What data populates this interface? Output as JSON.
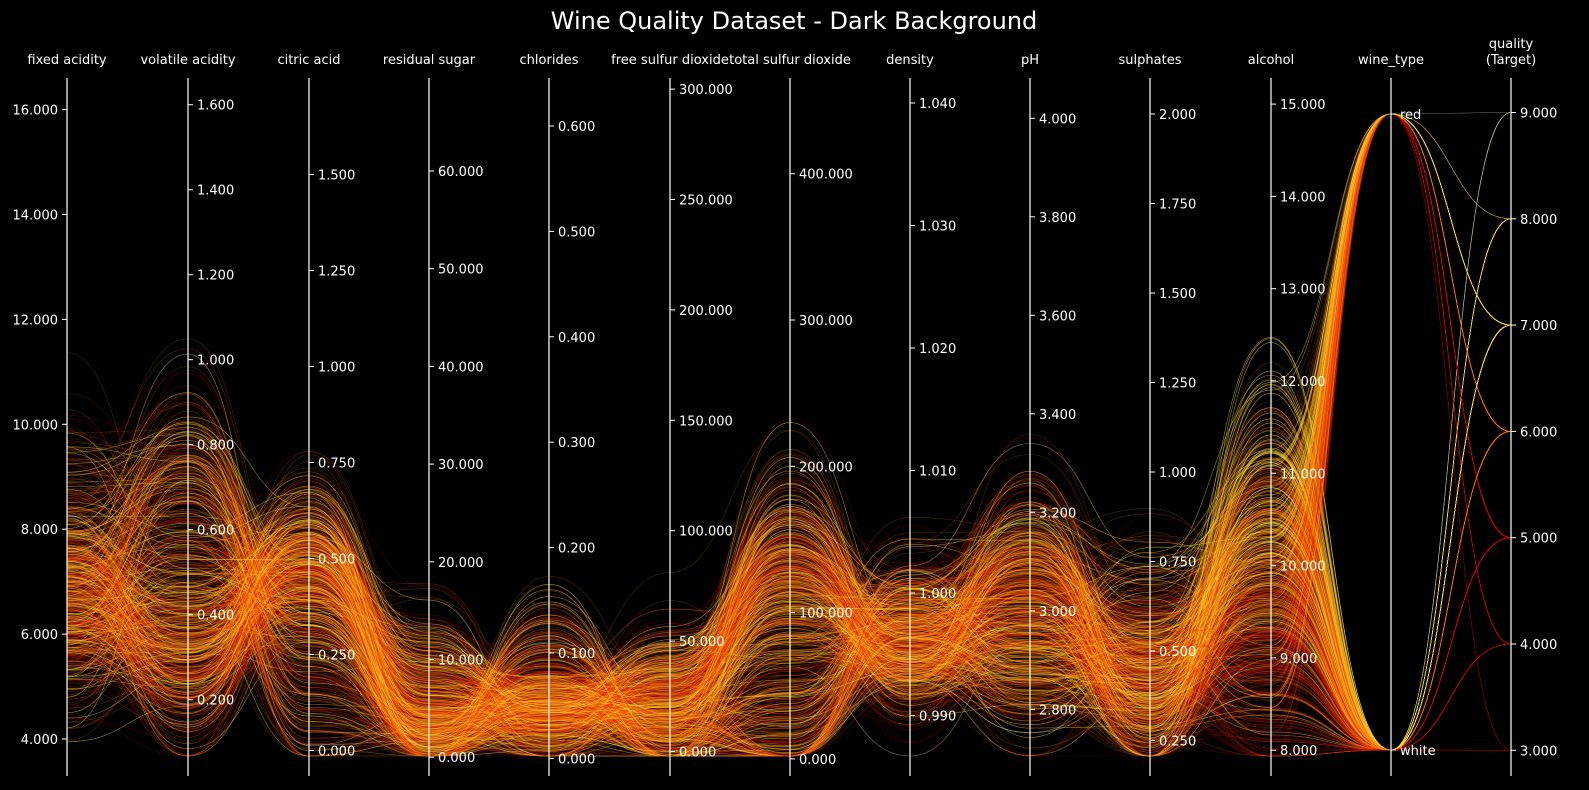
{
  "chart_data": {
    "type": "parallel_coordinates",
    "title": "Wine Quality Dataset - Dark Background",
    "background": "#000000",
    "colors": {
      "low_quality": "#e00000",
      "mid_quality": "#ff7a00",
      "high_quality": "#ffe135",
      "top_quality": "#d8d8b0"
    },
    "axes": [
      {
        "name": "fixed acidity",
        "ticks": [
          "4.000",
          "6.000",
          "8.000",
          "10.000",
          "12.000",
          "14.000",
          "16.000"
        ]
      },
      {
        "name": "volatile acidity",
        "ticks": [
          "0.200",
          "0.400",
          "0.600",
          "0.800",
          "1.000",
          "1.200",
          "1.400",
          "1.600"
        ]
      },
      {
        "name": "citric acid",
        "ticks": [
          "0.000",
          "0.250",
          "0.500",
          "0.750",
          "1.000",
          "1.250",
          "1.500"
        ]
      },
      {
        "name": "residual sugar",
        "ticks": [
          "0.000",
          "10.000",
          "20.000",
          "30.000",
          "40.000",
          "50.000",
          "60.000"
        ]
      },
      {
        "name": "chlorides",
        "ticks": [
          "0.000",
          "0.100",
          "0.200",
          "0.300",
          "0.400",
          "0.500",
          "0.600"
        ]
      },
      {
        "name": "free sulfur dioxide",
        "ticks": [
          "0.000",
          "50.000",
          "100.000",
          "150.000",
          "200.000",
          "250.000",
          "300.000"
        ]
      },
      {
        "name": "total sulfur dioxide",
        "ticks": [
          "0.000",
          "100.000",
          "200.000",
          "300.000",
          "400.000"
        ]
      },
      {
        "name": "density",
        "ticks": [
          "0.990",
          "1.000",
          "1.010",
          "1.020",
          "1.030",
          "1.040"
        ]
      },
      {
        "name": "pH",
        "ticks": [
          "2.800",
          "3.000",
          "3.200",
          "3.400",
          "3.600",
          "3.800",
          "4.000"
        ]
      },
      {
        "name": "sulphates",
        "ticks": [
          "0.250",
          "0.500",
          "0.750",
          "1.000",
          "1.250",
          "1.500",
          "1.750",
          "2.000"
        ]
      },
      {
        "name": "alcohol",
        "ticks": [
          "8.000",
          "9.000",
          "10.000",
          "11.000",
          "12.000",
          "13.000",
          "14.000",
          "15.000"
        ]
      },
      {
        "name": "wine_type",
        "ticks": [
          "white",
          "red"
        ]
      },
      {
        "name": "quality\n(Target)",
        "ticks": [
          "3.000",
          "4.000",
          "5.000",
          "6.000",
          "7.000",
          "8.000",
          "9.000"
        ]
      }
    ],
    "wine_types": [
      "white",
      "red"
    ],
    "quality_levels": [
      3,
      4,
      5,
      6,
      7,
      8,
      9
    ]
  }
}
